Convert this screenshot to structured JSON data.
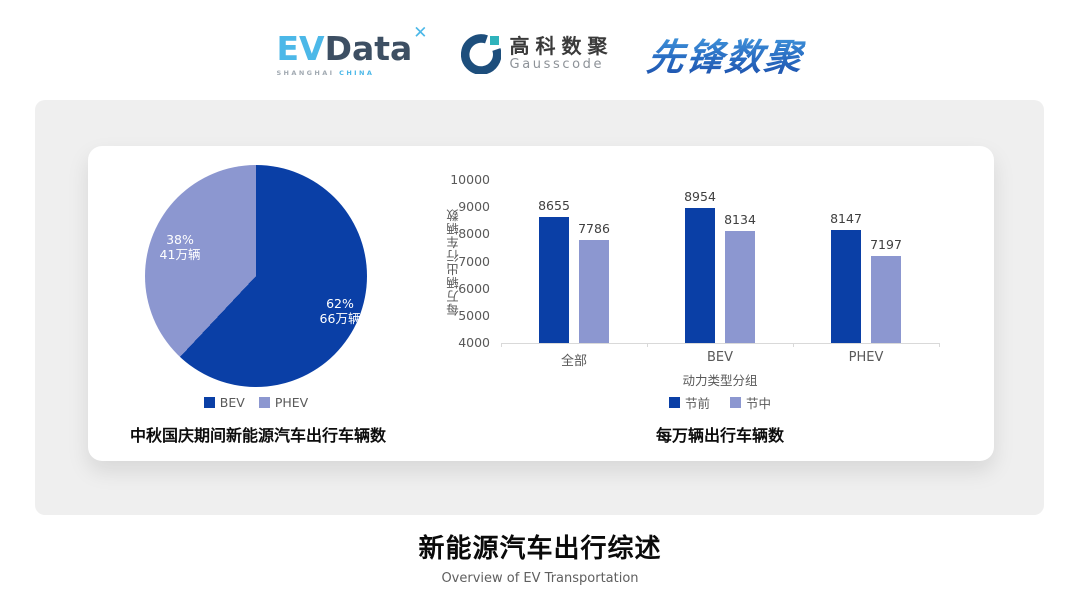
{
  "header": {
    "evdata": {
      "ev": "EV",
      "data": "Data",
      "mark": "✕",
      "sub_left": "SHANGHAI",
      "sub_right": "CHINA"
    },
    "gausscode": {
      "cn": "高科数聚",
      "en": "Gausscode"
    },
    "pioneer": "先锋数聚"
  },
  "colors": {
    "primary_blue": "#0a3fa6",
    "secondary_blue": "#8c97d0",
    "panel_gray": "#efefef",
    "axis_gray": "#d9d9d9"
  },
  "chart_data": [
    {
      "type": "pie",
      "title": "中秋国庆期间新能源汽车出行车辆数",
      "start_angle_deg": 0,
      "direction": "clockwise",
      "slices": [
        {
          "label": "BEV",
          "value_pct": 62,
          "pct": "62%",
          "amount": "66万辆",
          "color": "#0a3fa6"
        },
        {
          "label": "PHEV",
          "value_pct": 38,
          "pct": "38%",
          "amount": "41万辆",
          "color": "#8c97d0"
        }
      ],
      "legend_position": "bottom"
    },
    {
      "type": "bar",
      "title": "每万辆出行车辆数",
      "categories": [
        "全部",
        "BEV",
        "PHEV"
      ],
      "series": [
        {
          "name": "节前",
          "values": [
            8655,
            8954,
            8147
          ],
          "color": "#0a3fa6"
        },
        {
          "name": "节中",
          "values": [
            7786,
            8134,
            7197
          ],
          "color": "#8c97d0"
        }
      ],
      "xlabel": "动力类型分组",
      "ylabel": "每万辆出行车辆数",
      "ylim": [
        4000,
        10000
      ],
      "ytick_step": 1000,
      "grid": false,
      "legend_position": "bottom"
    }
  ],
  "footer": {
    "title": "新能源汽车出行综述",
    "subtitle": "Overview of EV Transportation"
  }
}
